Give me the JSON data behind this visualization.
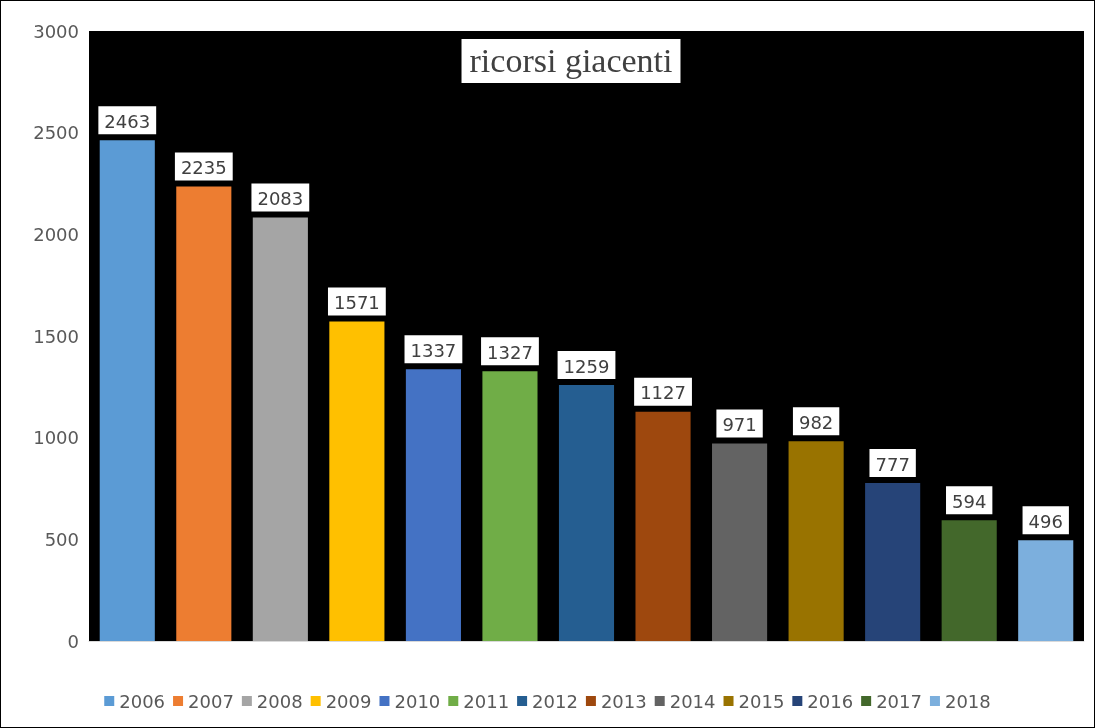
{
  "chart_data": {
    "type": "bar",
    "title": "ricorsi giacenti",
    "categories": [
      null,
      null,
      null,
      null,
      null,
      null,
      null,
      null,
      null,
      null,
      null,
      null,
      null
    ],
    "series": [
      {
        "name": "2006",
        "color": "#5b9bd5",
        "values": [
          2463,
          null,
          null,
          null,
          null,
          null,
          null,
          null,
          null,
          null,
          null,
          null,
          null
        ]
      },
      {
        "name": "2007",
        "color": "#ed7d31",
        "values": [
          null,
          2235,
          null,
          null,
          null,
          null,
          null,
          null,
          null,
          null,
          null,
          null,
          null
        ]
      },
      {
        "name": "2008",
        "color": "#a5a5a5",
        "values": [
          null,
          null,
          2083,
          null,
          null,
          null,
          null,
          null,
          null,
          null,
          null,
          null,
          null
        ]
      },
      {
        "name": "2009",
        "color": "#ffc000",
        "values": [
          null,
          null,
          null,
          1571,
          null,
          null,
          null,
          null,
          null,
          null,
          null,
          null,
          null
        ]
      },
      {
        "name": "2010",
        "color": "#4472c4",
        "values": [
          null,
          null,
          null,
          null,
          1337,
          null,
          null,
          null,
          null,
          null,
          null,
          null,
          null
        ]
      },
      {
        "name": "2011",
        "color": "#70ad47",
        "values": [
          null,
          null,
          null,
          null,
          null,
          1327,
          null,
          null,
          null,
          null,
          null,
          null,
          null
        ]
      },
      {
        "name": "2012",
        "color": "#255e91",
        "values": [
          null,
          null,
          null,
          null,
          null,
          null,
          1259,
          null,
          null,
          null,
          null,
          null,
          null
        ]
      },
      {
        "name": "2013",
        "color": "#9e480e",
        "values": [
          null,
          null,
          null,
          null,
          null,
          null,
          null,
          1127,
          null,
          null,
          null,
          null,
          null
        ]
      },
      {
        "name": "2014",
        "color": "#636363",
        "values": [
          null,
          null,
          null,
          null,
          null,
          null,
          null,
          null,
          971,
          null,
          null,
          null,
          null
        ]
      },
      {
        "name": "2015",
        "color": "#997300",
        "values": [
          null,
          null,
          null,
          null,
          null,
          null,
          null,
          null,
          null,
          982,
          null,
          null,
          null
        ]
      },
      {
        "name": "2016",
        "color": "#264478",
        "values": [
          null,
          null,
          null,
          null,
          null,
          null,
          null,
          null,
          null,
          null,
          777,
          null,
          null
        ]
      },
      {
        "name": "2017",
        "color": "#43682b",
        "values": [
          null,
          null,
          null,
          null,
          null,
          null,
          null,
          null,
          null,
          null,
          null,
          594,
          null
        ]
      },
      {
        "name": "2018",
        "color": "#7cafdd",
        "values": [
          null,
          null,
          null,
          null,
          null,
          null,
          null,
          null,
          null,
          null,
          null,
          null,
          496
        ]
      }
    ],
    "ylim": [
      0,
      3000
    ],
    "yticks": [
      0,
      500,
      1000,
      1500,
      2000,
      2500,
      3000
    ],
    "grid": false,
    "legend": "bottom",
    "data_labels": true
  }
}
